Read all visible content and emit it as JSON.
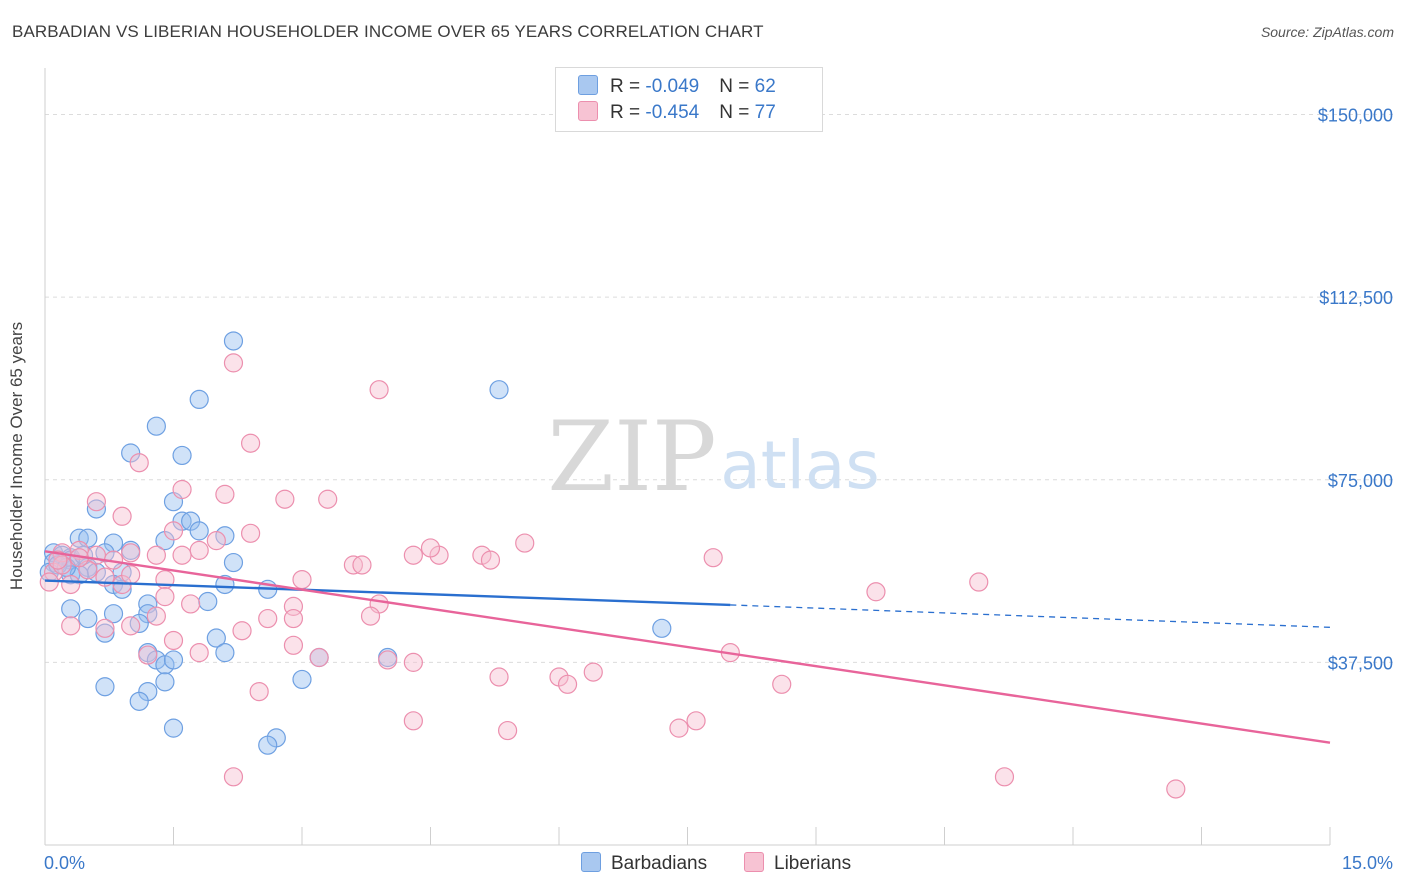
{
  "title": "BARBADIAN VS LIBERIAN HOUSEHOLDER INCOME OVER 65 YEARS CORRELATION CHART",
  "source": "Source: ZipAtlas.com",
  "watermark": {
    "zip": "ZIP",
    "atlas": "atlas"
  },
  "legend": {
    "rows": [
      {
        "r_label": "R = ",
        "r_value": "-0.049",
        "n_label": "N = ",
        "n_value": "62",
        "color": "#a9c8f0",
        "border": "#6e9fe0"
      },
      {
        "r_label": "R = ",
        "r_value": "-0.454",
        "n_label": "N = ",
        "n_value": "77",
        "color": "#f7c3d3",
        "border": "#ec8fae"
      }
    ]
  },
  "bottom_legend": [
    {
      "label": "Barbadians",
      "color": "#a9c8f0",
      "border": "#6e9fe0"
    },
    {
      "label": "Liberians",
      "color": "#f7c3d3",
      "border": "#ec8fae"
    }
  ],
  "chart_data": {
    "type": "scatter",
    "title": "BARBADIAN VS LIBERIAN HOUSEHOLDER INCOME OVER 65 YEARS CORRELATION CHART",
    "xlabel": "",
    "ylabel": "Householder Income Over 65 years",
    "xlim": [
      0,
      15
    ],
    "ylim": [
      0,
      157500
    ],
    "x_tick_labels": {
      "left": "0.0%",
      "right": "15.0%"
    },
    "y_ticks": [
      {
        "value": 37500,
        "label": "$37,500"
      },
      {
        "value": 75000,
        "label": "$75,000"
      },
      {
        "value": 112500,
        "label": "$112,500"
      },
      {
        "value": 150000,
        "label": "$150,000"
      }
    ],
    "grid": true,
    "series": [
      {
        "name": "Barbadians",
        "color": "#6ea0e2",
        "fill": "rgba(150,190,240,0.45)",
        "trend": {
          "x": [
            0,
            8.0
          ],
          "y": [
            54300,
            49300
          ],
          "dashed_to": [
            15,
            44700
          ],
          "color": "#2a6fcf"
        },
        "points": [
          [
            2.2,
            103500
          ],
          [
            5.3,
            93500
          ],
          [
            1.8,
            91500
          ],
          [
            1.3,
            86000
          ],
          [
            1.0,
            80500
          ],
          [
            1.6,
            80000
          ],
          [
            0.6,
            69000
          ],
          [
            1.5,
            70500
          ],
          [
            1.6,
            66500
          ],
          [
            1.7,
            66500
          ],
          [
            0.4,
            63000
          ],
          [
            0.5,
            63000
          ],
          [
            1.8,
            64500
          ],
          [
            2.1,
            63500
          ],
          [
            0.8,
            62000
          ],
          [
            1.4,
            62500
          ],
          [
            0.1,
            60000
          ],
          [
            0.2,
            59500
          ],
          [
            0.3,
            59000
          ],
          [
            0.7,
            60000
          ],
          [
            1.0,
            60500
          ],
          [
            0.1,
            58000
          ],
          [
            0.3,
            58500
          ],
          [
            0.5,
            57000
          ],
          [
            0.6,
            56000
          ],
          [
            0.9,
            56000
          ],
          [
            2.2,
            58000
          ],
          [
            0.3,
            55500
          ],
          [
            0.4,
            55500
          ],
          [
            0.8,
            53500
          ],
          [
            0.9,
            52500
          ],
          [
            2.1,
            53500
          ],
          [
            2.6,
            52500
          ],
          [
            0.3,
            48500
          ],
          [
            0.5,
            46500
          ],
          [
            0.8,
            47500
          ],
          [
            1.2,
            49500
          ],
          [
            1.9,
            50000
          ],
          [
            1.2,
            47500
          ],
          [
            1.1,
            45500
          ],
          [
            0.7,
            43500
          ],
          [
            2.0,
            42500
          ],
          [
            7.2,
            44500
          ],
          [
            1.2,
            39500
          ],
          [
            1.3,
            38000
          ],
          [
            1.4,
            37000
          ],
          [
            1.5,
            38000
          ],
          [
            2.1,
            39500
          ],
          [
            3.2,
            38500
          ],
          [
            4.0,
            38500
          ],
          [
            0.7,
            32500
          ],
          [
            1.2,
            31500
          ],
          [
            1.4,
            33500
          ],
          [
            3.0,
            34000
          ],
          [
            1.1,
            29500
          ],
          [
            1.5,
            24000
          ],
          [
            2.7,
            22000
          ],
          [
            2.6,
            20500
          ],
          [
            0.05,
            56000
          ],
          [
            0.15,
            57500
          ],
          [
            0.45,
            59500
          ],
          [
            0.25,
            57000
          ]
        ]
      },
      {
        "name": "Liberians",
        "color": "#ec8fae",
        "fill": "rgba(247,190,208,0.45)",
        "trend": {
          "x": [
            0,
            15
          ],
          "y": [
            60300,
            21000
          ],
          "color": "#e8649a"
        },
        "points": [
          [
            2.2,
            99000
          ],
          [
            3.9,
            93500
          ],
          [
            2.4,
            82500
          ],
          [
            1.1,
            78500
          ],
          [
            1.6,
            73000
          ],
          [
            2.1,
            72000
          ],
          [
            2.8,
            71000
          ],
          [
            3.3,
            71000
          ],
          [
            0.6,
            70500
          ],
          [
            0.9,
            67500
          ],
          [
            1.5,
            64500
          ],
          [
            2.0,
            62500
          ],
          [
            2.4,
            64000
          ],
          [
            1.8,
            60500
          ],
          [
            1.3,
            59500
          ],
          [
            1.6,
            59500
          ],
          [
            0.2,
            60000
          ],
          [
            0.4,
            60500
          ],
          [
            0.6,
            59500
          ],
          [
            1.0,
            60000
          ],
          [
            0.8,
            58500
          ],
          [
            3.6,
            57500
          ],
          [
            3.7,
            57500
          ],
          [
            4.3,
            59500
          ],
          [
            4.6,
            59500
          ],
          [
            5.1,
            59500
          ],
          [
            5.2,
            58500
          ],
          [
            4.5,
            61000
          ],
          [
            5.6,
            62000
          ],
          [
            7.8,
            59000
          ],
          [
            0.5,
            56500
          ],
          [
            0.7,
            55000
          ],
          [
            1.4,
            54500
          ],
          [
            3.0,
            54500
          ],
          [
            0.9,
            53500
          ],
          [
            10.9,
            54000
          ],
          [
            9.7,
            52000
          ],
          [
            1.4,
            51000
          ],
          [
            1.7,
            49500
          ],
          [
            2.9,
            49000
          ],
          [
            3.9,
            49500
          ],
          [
            1.3,
            47000
          ],
          [
            2.6,
            46500
          ],
          [
            2.9,
            46500
          ],
          [
            3.8,
            47000
          ],
          [
            0.3,
            45000
          ],
          [
            0.7,
            44500
          ],
          [
            1.0,
            45000
          ],
          [
            2.3,
            44000
          ],
          [
            1.5,
            42000
          ],
          [
            1.2,
            39000
          ],
          [
            1.8,
            39500
          ],
          [
            2.9,
            41000
          ],
          [
            3.2,
            38500
          ],
          [
            4.0,
            38000
          ],
          [
            4.3,
            37500
          ],
          [
            8.0,
            39500
          ],
          [
            5.3,
            34500
          ],
          [
            6.0,
            34500
          ],
          [
            6.1,
            33000
          ],
          [
            6.4,
            35500
          ],
          [
            8.6,
            33000
          ],
          [
            2.5,
            31500
          ],
          [
            4.3,
            25500
          ],
          [
            7.6,
            25500
          ],
          [
            5.4,
            23500
          ],
          [
            7.4,
            24000
          ],
          [
            2.2,
            14000
          ],
          [
            11.2,
            14000
          ],
          [
            13.2,
            11500
          ],
          [
            0.1,
            56000
          ],
          [
            0.05,
            54000
          ],
          [
            0.3,
            53500
          ],
          [
            0.2,
            57500
          ],
          [
            0.4,
            59000
          ],
          [
            1.0,
            55500
          ],
          [
            0.15,
            58500
          ]
        ]
      }
    ]
  }
}
